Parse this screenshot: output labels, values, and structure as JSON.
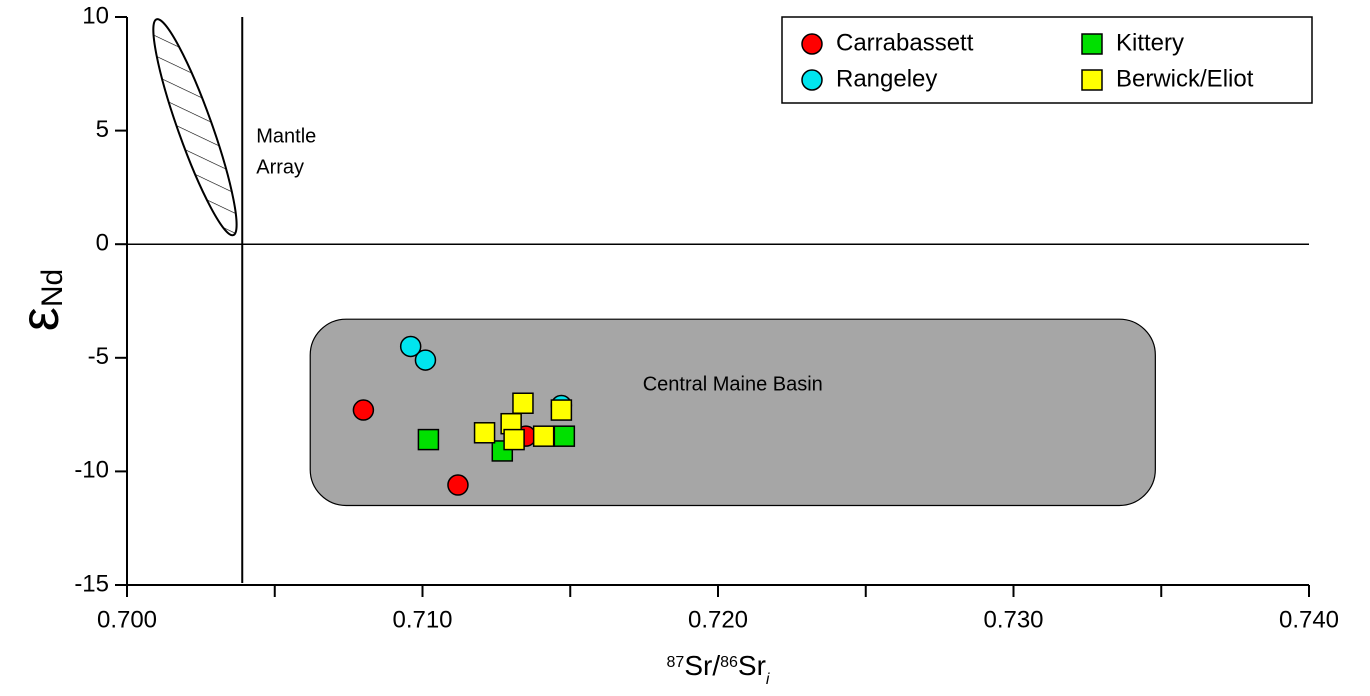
{
  "chart_data": {
    "type": "scatter",
    "xlabel_parts": [
      "87",
      "Sr/",
      "86",
      "Sr",
      "i"
    ],
    "ylabel_parts": [
      "ε",
      "Nd"
    ],
    "xlim": [
      0.7,
      0.74
    ],
    "ylim": [
      -15,
      10
    ],
    "xticks": [
      {
        "value": 0.7,
        "label": "0.700"
      },
      {
        "value": 0.71,
        "label": "0.710"
      },
      {
        "value": 0.72,
        "label": "0.720"
      },
      {
        "value": 0.73,
        "label": "0.730"
      },
      {
        "value": 0.74,
        "label": "0.740"
      }
    ],
    "minor_xticks": [
      0.705,
      0.715,
      0.725,
      0.735
    ],
    "yticks": [
      10,
      5,
      0,
      -5,
      -10,
      -15
    ],
    "zero_line": true,
    "legend": "upper right",
    "mantle_array": {
      "label_lines": [
        "Mantle",
        "Array"
      ],
      "x": 0.7039,
      "ellipse_ends": [
        [
          0.701,
          9.9
        ],
        [
          0.7036,
          0.4
        ]
      ]
    },
    "region": {
      "label": "Central Maine Basin",
      "xlim": [
        0.7062,
        0.7348
      ],
      "ylim": [
        -11.5,
        -3.3
      ],
      "color": "#a6a6a6"
    },
    "series": [
      {
        "name": "Carrabassett",
        "color": "#ff0000",
        "marker": "circle",
        "x": [
          0.708,
          0.7112,
          0.7135
        ],
        "values": [
          -7.3,
          -10.6,
          -8.45
        ]
      },
      {
        "name": "Rangeley",
        "color": "#00e5ee",
        "marker": "circle",
        "x": [
          0.7096,
          0.7101,
          0.7147
        ],
        "values": [
          -4.5,
          -5.1,
          -7.1
        ]
      },
      {
        "name": "Kittery",
        "color": "#00e000",
        "marker": "square",
        "x": [
          0.7102,
          0.7127,
          0.7148
        ],
        "values": [
          -8.6,
          -9.1,
          -8.45
        ]
      },
      {
        "name": "Berwick/Eliot",
        "color": "#ffff00",
        "marker": "square",
        "x": [
          0.7134,
          0.7121,
          0.713,
          0.7131,
          0.7141,
          0.7147
        ],
        "values": [
          -7.0,
          -8.3,
          -7.9,
          -8.6,
          -8.45,
          -7.3
        ]
      }
    ]
  }
}
